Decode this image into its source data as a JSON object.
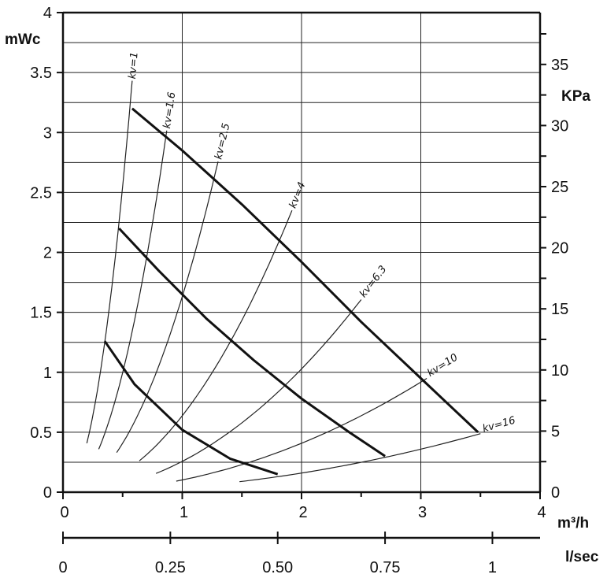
{
  "chart_data": {
    "type": "line",
    "x_axis": {
      "label": "m³/h",
      "range": [
        0,
        4
      ],
      "ticks": [
        "0",
        "1",
        "2",
        "3",
        "4"
      ],
      "grid": true
    },
    "x2_axis": {
      "label": "l/sec",
      "range": [
        0,
        1.111
      ],
      "ticks": [
        {
          "v": 0,
          "t": "0"
        },
        {
          "v": 0.25,
          "t": "0.25"
        },
        {
          "v": 0.5,
          "t": "0.50"
        },
        {
          "v": 0.75,
          "t": "0.75"
        },
        {
          "v": 1,
          "t": "1"
        }
      ]
    },
    "y_axis": {
      "label": "mWc",
      "range": [
        0,
        4
      ],
      "ticks": [
        "0",
        "0.5",
        "1",
        "1.5",
        "2",
        "2.5",
        "3",
        "3.5",
        "4"
      ],
      "grid": true
    },
    "y2_axis": {
      "label": "KPa",
      "range": [
        0,
        39.24
      ],
      "ticks": [
        "0",
        "5",
        "10",
        "15",
        "20",
        "25",
        "30",
        "35"
      ]
    },
    "pump_curves": [
      {
        "points": [
          [
            0.35,
            1.26
          ],
          [
            0.6,
            0.9
          ],
          [
            1.0,
            0.52
          ],
          [
            1.4,
            0.28
          ],
          [
            1.8,
            0.15
          ]
        ]
      },
      {
        "points": [
          [
            0.47,
            2.2
          ],
          [
            0.8,
            1.85
          ],
          [
            1.2,
            1.45
          ],
          [
            1.6,
            1.1
          ],
          [
            2.0,
            0.78
          ],
          [
            2.4,
            0.5
          ],
          [
            2.7,
            0.3
          ]
        ]
      },
      {
        "points": [
          [
            0.58,
            3.2
          ],
          [
            1.0,
            2.85
          ],
          [
            1.5,
            2.4
          ],
          [
            2.0,
            1.92
          ],
          [
            2.5,
            1.42
          ],
          [
            3.0,
            0.95
          ],
          [
            3.48,
            0.5
          ]
        ]
      }
    ],
    "kv_curves": [
      {
        "label": "kv=1",
        "kv": 1,
        "from": 0.2,
        "to": 0.58
      },
      {
        "label": "kv=1.6",
        "kv": 1.6,
        "from": 0.3,
        "to": 0.87
      },
      {
        "label": "kv=2.5",
        "kv": 2.5,
        "from": 0.45,
        "to": 1.3
      },
      {
        "label": "kv=4",
        "kv": 4,
        "from": 0.64,
        "to": 1.92
      },
      {
        "label": "kv=6.3",
        "kv": 6.3,
        "from": 0.78,
        "to": 2.5
      },
      {
        "label": "kv=10",
        "kv": 10,
        "from": 0.95,
        "to": 3.05
      },
      {
        "label": "kv=16",
        "kv": 16,
        "from": 1.48,
        "to": 3.5
      }
    ]
  }
}
